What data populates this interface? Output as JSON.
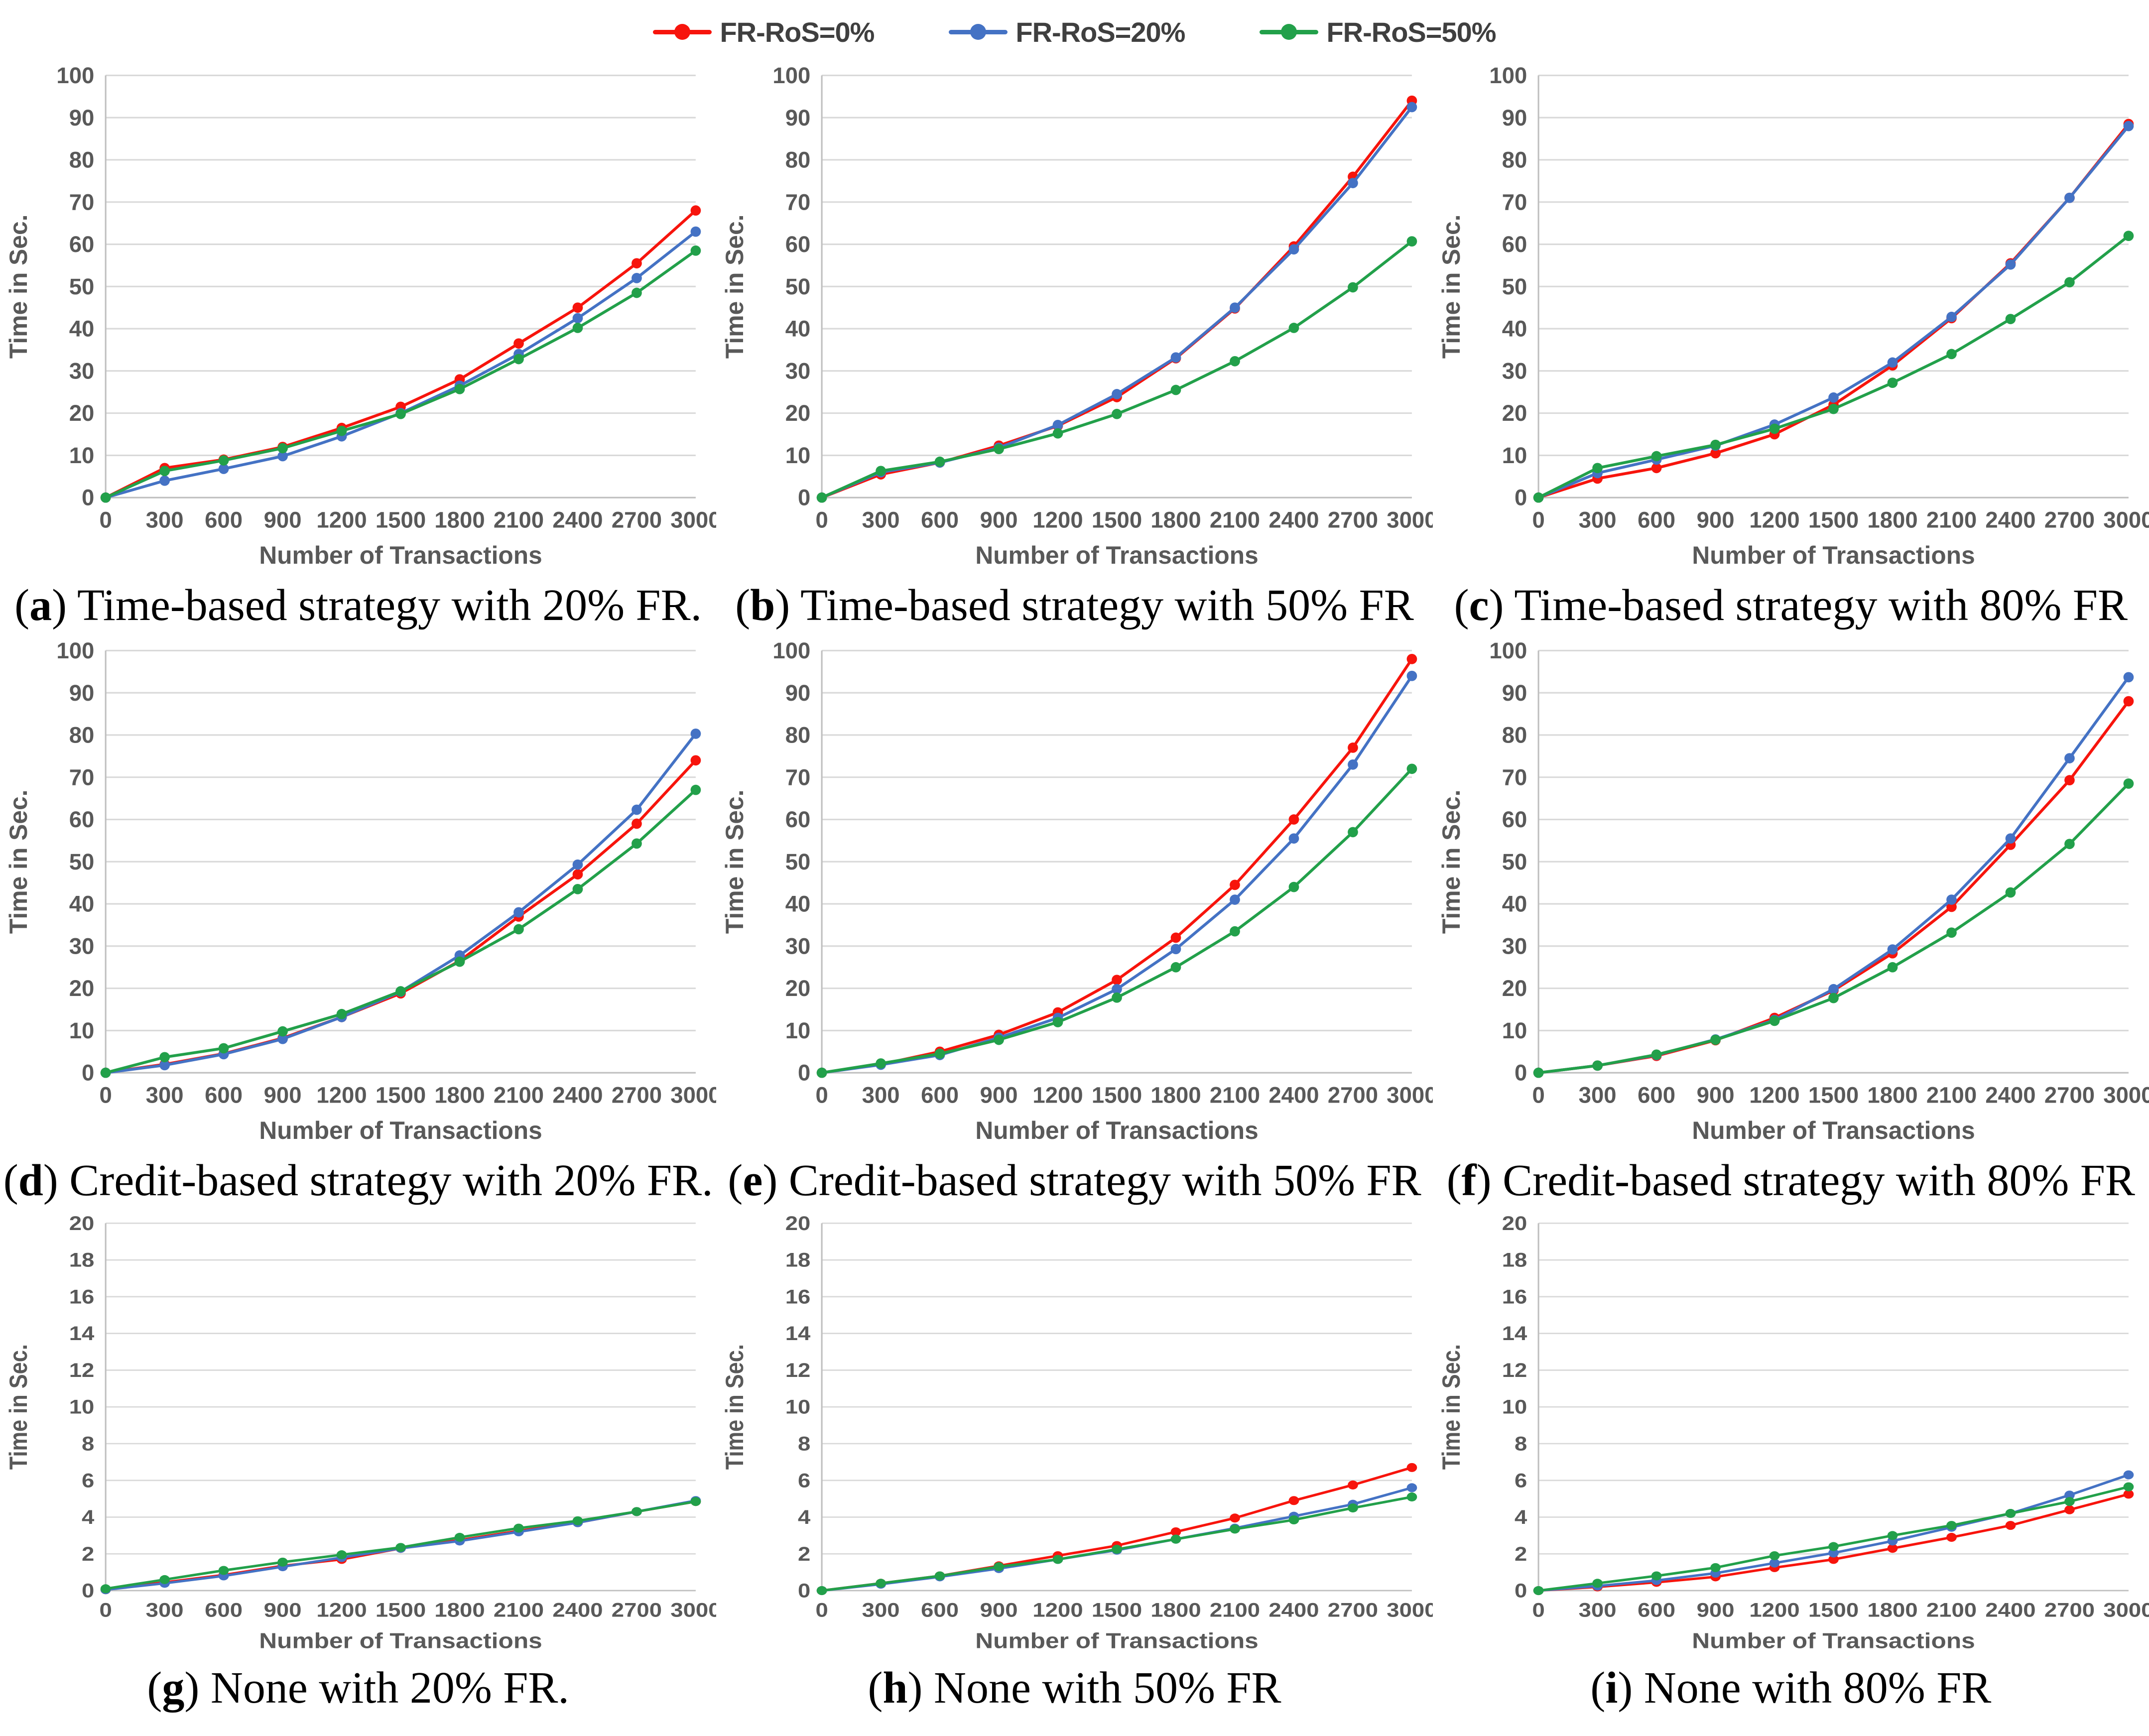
{
  "legend": {
    "items": [
      {
        "label": "FR-RoS=0%",
        "color": "#f7140c"
      },
      {
        "label": "FR-RoS=20%",
        "color": "#4472c4"
      },
      {
        "label": "FR-RoS=50%",
        "color": "#22a04a"
      }
    ]
  },
  "axis": {
    "xlabel": "Number of Transactions",
    "ylabel": "Time in Sec."
  },
  "x": [
    0,
    300,
    600,
    900,
    1200,
    1500,
    1800,
    2100,
    2400,
    2700,
    3000
  ],
  "chart_data": [
    {
      "id": "a",
      "type": "line",
      "caption_label": "a",
      "caption": "Time-based strategy with 20% FR.",
      "ylim": [
        0,
        100
      ],
      "ystep": 10,
      "grid": true,
      "legend_position": "top",
      "series": [
        {
          "name": "FR-RoS=0%",
          "values": [
            0,
            7,
            9,
            12,
            16.5,
            21.5,
            28,
            36.5,
            45,
            55.5,
            68
          ]
        },
        {
          "name": "FR-RoS=20%",
          "values": [
            0,
            4,
            6.8,
            9.8,
            14.5,
            20,
            26.5,
            34,
            42.5,
            52,
            63
          ]
        },
        {
          "name": "FR-RoS=50%",
          "values": [
            0,
            6.3,
            8.8,
            11.7,
            15.8,
            19.8,
            25.7,
            32.8,
            40.2,
            48.5,
            58.5
          ]
        }
      ]
    },
    {
      "id": "b",
      "type": "line",
      "caption_label": "b",
      "caption": "Time-based strategy with 50% FR",
      "ylim": [
        0,
        100
      ],
      "ystep": 10,
      "grid": true,
      "legend_position": "top",
      "series": [
        {
          "name": "FR-RoS=0%",
          "values": [
            0,
            5.5,
            8.3,
            12.3,
            17,
            23.8,
            33,
            44.8,
            59.5,
            76,
            94
          ]
        },
        {
          "name": "FR-RoS=20%",
          "values": [
            0,
            6,
            8.3,
            11.8,
            17.2,
            24.5,
            33.2,
            45,
            58.8,
            74.5,
            92.5
          ]
        },
        {
          "name": "FR-RoS=50%",
          "values": [
            0,
            6.3,
            8.5,
            11.5,
            15.2,
            19.8,
            25.5,
            32.3,
            40.2,
            49.8,
            60.7
          ]
        }
      ]
    },
    {
      "id": "c",
      "type": "line",
      "caption_label": "c",
      "caption": "Time-based strategy with 80% FR",
      "ylim": [
        0,
        100
      ],
      "ystep": 10,
      "grid": true,
      "legend_position": "top",
      "series": [
        {
          "name": "FR-RoS=0%",
          "values": [
            0,
            4.5,
            7,
            10.5,
            15,
            22,
            31.3,
            42.5,
            55.5,
            71,
            88.5
          ]
        },
        {
          "name": "FR-RoS=20%",
          "values": [
            0,
            5.8,
            9,
            12.3,
            17.3,
            23.7,
            32,
            42.8,
            55.2,
            71,
            88
          ]
        },
        {
          "name": "FR-RoS=50%",
          "values": [
            0,
            7,
            9.8,
            12.5,
            16.3,
            21,
            27.2,
            34,
            42.3,
            51,
            62
          ]
        }
      ]
    },
    {
      "id": "d",
      "type": "line",
      "caption_label": "d",
      "caption": "Credit-based strategy with 20% FR.",
      "ylim": [
        0,
        100
      ],
      "ystep": 10,
      "grid": true,
      "legend_position": "top",
      "series": [
        {
          "name": "FR-RoS=0%",
          "values": [
            0,
            2,
            4.5,
            8.2,
            13.2,
            18.8,
            26.5,
            37,
            47,
            59,
            74
          ]
        },
        {
          "name": "FR-RoS=20%",
          "values": [
            0,
            1.8,
            4.4,
            8,
            13.2,
            19.2,
            27.8,
            38,
            49.3,
            62.3,
            80.3
          ]
        },
        {
          "name": "FR-RoS=50%",
          "values": [
            0,
            3.7,
            5.8,
            9.8,
            13.9,
            19.3,
            26.3,
            34,
            43.5,
            54.3,
            67
          ]
        }
      ]
    },
    {
      "id": "e",
      "type": "line",
      "caption_label": "e",
      "caption": "Credit-based strategy with 50% FR",
      "ylim": [
        0,
        100
      ],
      "ystep": 10,
      "grid": true,
      "legend_position": "top",
      "series": [
        {
          "name": "FR-RoS=0%",
          "values": [
            0,
            2,
            5,
            9,
            14.3,
            22,
            32,
            44.5,
            60,
            77,
            98
          ]
        },
        {
          "name": "FR-RoS=20%",
          "values": [
            0,
            1.9,
            4.2,
            8.3,
            13,
            19.8,
            29.3,
            41,
            55.5,
            73,
            94
          ]
        },
        {
          "name": "FR-RoS=50%",
          "values": [
            0,
            2.2,
            4.5,
            7.8,
            12,
            17.8,
            25,
            33.5,
            44,
            57,
            72
          ]
        }
      ]
    },
    {
      "id": "f",
      "type": "line",
      "caption_label": "f",
      "caption": "Credit-based strategy with 80% FR",
      "ylim": [
        0,
        100
      ],
      "ystep": 10,
      "grid": true,
      "legend_position": "top",
      "series": [
        {
          "name": "FR-RoS=0%",
          "values": [
            0,
            1.7,
            4,
            7.7,
            13,
            19.5,
            28.3,
            39.3,
            54,
            69.3,
            88
          ]
        },
        {
          "name": "FR-RoS=20%",
          "values": [
            0,
            1.7,
            4.2,
            7.9,
            12.5,
            19.8,
            29.2,
            41,
            55.5,
            74.5,
            93.7
          ]
        },
        {
          "name": "FR-RoS=50%",
          "values": [
            0,
            1.7,
            4.3,
            7.8,
            12.3,
            17.7,
            25,
            33.2,
            42.7,
            54.2,
            68.5
          ]
        }
      ]
    },
    {
      "id": "g",
      "type": "line",
      "caption_label": "g",
      "caption": "None with 20% FR.",
      "ylim": [
        0,
        20
      ],
      "ystep": 2,
      "grid": true,
      "legend_position": "top",
      "series": [
        {
          "name": "FR-RoS=0%",
          "values": [
            0.05,
            0.45,
            0.85,
            1.35,
            1.7,
            2.3,
            2.75,
            3.25,
            3.7,
            4.3,
            4.85
          ]
        },
        {
          "name": "FR-RoS=20%",
          "values": [
            0.05,
            0.4,
            0.8,
            1.3,
            1.8,
            2.3,
            2.7,
            3.2,
            3.7,
            4.3,
            4.9
          ]
        },
        {
          "name": "FR-RoS=50%",
          "values": [
            0.1,
            0.6,
            1.1,
            1.55,
            1.95,
            2.35,
            2.9,
            3.4,
            3.8,
            4.3,
            4.85
          ]
        }
      ]
    },
    {
      "id": "h",
      "type": "line",
      "caption_label": "h",
      "caption": "None with 50% FR",
      "ylim": [
        0,
        20
      ],
      "ystep": 2,
      "grid": true,
      "legend_position": "top",
      "series": [
        {
          "name": "FR-RoS=0%",
          "values": [
            0,
            0.4,
            0.8,
            1.35,
            1.9,
            2.45,
            3.2,
            3.95,
            4.9,
            5.75,
            6.7
          ]
        },
        {
          "name": "FR-RoS=20%",
          "values": [
            0,
            0.35,
            0.75,
            1.2,
            1.7,
            2.2,
            2.8,
            3.4,
            4.05,
            4.7,
            5.6
          ]
        },
        {
          "name": "FR-RoS=50%",
          "values": [
            0,
            0.4,
            0.8,
            1.3,
            1.7,
            2.25,
            2.8,
            3.35,
            3.85,
            4.5,
            5.1
          ]
        }
      ]
    },
    {
      "id": "i",
      "type": "line",
      "caption_label": "i",
      "caption": "None with 80% FR",
      "ylim": [
        0,
        20
      ],
      "ystep": 2,
      "grid": true,
      "legend_position": "top",
      "series": [
        {
          "name": "FR-RoS=0%",
          "values": [
            0,
            0.2,
            0.45,
            0.75,
            1.25,
            1.7,
            2.3,
            2.9,
            3.55,
            4.4,
            5.25
          ]
        },
        {
          "name": "FR-RoS=20%",
          "values": [
            0,
            0.25,
            0.55,
            0.95,
            1.5,
            2.05,
            2.7,
            3.45,
            4.2,
            5.2,
            6.3
          ]
        },
        {
          "name": "FR-RoS=50%",
          "values": [
            0,
            0.4,
            0.8,
            1.25,
            1.9,
            2.4,
            3.0,
            3.55,
            4.2,
            4.85,
            5.65
          ]
        }
      ]
    }
  ]
}
